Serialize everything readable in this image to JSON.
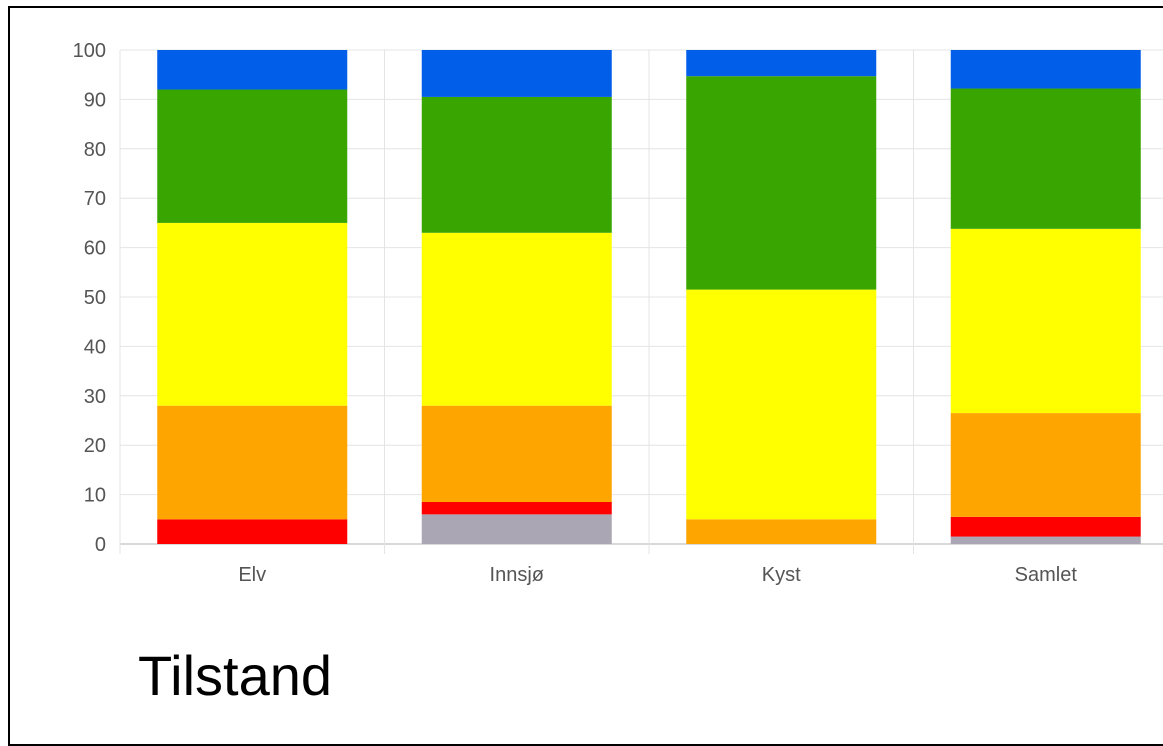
{
  "caption": "Tilstand",
  "chart_data": {
    "type": "bar",
    "stacked": true,
    "categories": [
      "Elv",
      "Innsjø",
      "Kyst",
      "Samlet"
    ],
    "ylim": [
      0,
      100
    ],
    "yticks": [
      "0",
      "10",
      "20",
      "30",
      "40",
      "50",
      "60",
      "70",
      "80",
      "90",
      "100"
    ],
    "grid": true,
    "series": [
      {
        "color": "#aaa6b4",
        "values": [
          0,
          6,
          0,
          1.5
        ]
      },
      {
        "color": "#ff0000",
        "values": [
          5,
          2.5,
          0,
          4
        ]
      },
      {
        "color": "#ffa500",
        "values": [
          23,
          19.5,
          5,
          21
        ]
      },
      {
        "color": "#ffff00",
        "values": [
          37,
          35,
          46.5,
          37.3
        ]
      },
      {
        "color": "#39a500",
        "values": [
          27,
          27.5,
          43.2,
          28.4
        ]
      },
      {
        "color": "#005ee8",
        "values": [
          8,
          9.5,
          5.3,
          7.8
        ]
      }
    ]
  }
}
